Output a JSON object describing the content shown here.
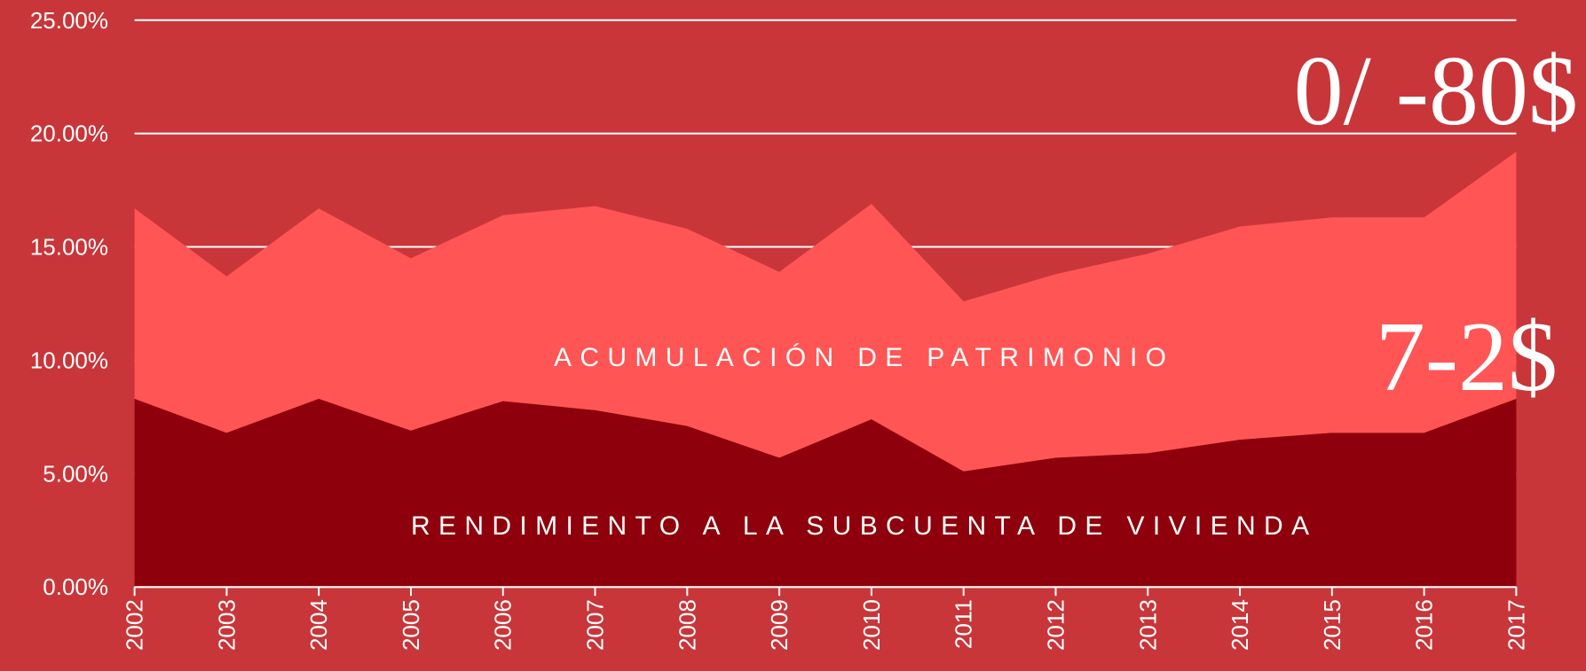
{
  "chart_data": {
    "type": "stacked-area",
    "categories": [
      "2002",
      "2003",
      "2004",
      "2005",
      "2006",
      "2007",
      "2008",
      "2009",
      "2010",
      "2011",
      "2012",
      "2013",
      "2014",
      "2015",
      "2016",
      "2017"
    ],
    "series": [
      {
        "name": "RENDIMIENTO A LA SUBCUENTA DE VIVIENDA",
        "color": "#8e000b",
        "values": [
          8.3,
          6.8,
          8.3,
          6.9,
          8.2,
          7.8,
          7.1,
          5.7,
          7.4,
          5.1,
          5.7,
          5.9,
          6.5,
          6.8,
          6.8,
          8.3
        ]
      },
      {
        "name": "ACUMULACIÓN DE PATRIMONIO",
        "color": "#ff5555",
        "values": [
          8.4,
          6.9,
          8.4,
          7.6,
          8.2,
          9.0,
          8.7,
          8.2,
          9.5,
          7.5,
          8.1,
          8.8,
          9.4,
          9.5,
          9.5,
          10.9
        ]
      }
    ],
    "ylim": [
      0,
      25
    ],
    "yticks": [
      {
        "value": 0,
        "label": "0.00%"
      },
      {
        "value": 5,
        "label": "5.00%"
      },
      {
        "value": 10,
        "label": "10.00%"
      },
      {
        "value": 15,
        "label": "15.00%"
      },
      {
        "value": 20,
        "label": "20.00%"
      },
      {
        "value": 25,
        "label": "25.00%"
      }
    ],
    "grid": true,
    "annotations": [
      "0/ -80$",
      "7-2$"
    ]
  }
}
